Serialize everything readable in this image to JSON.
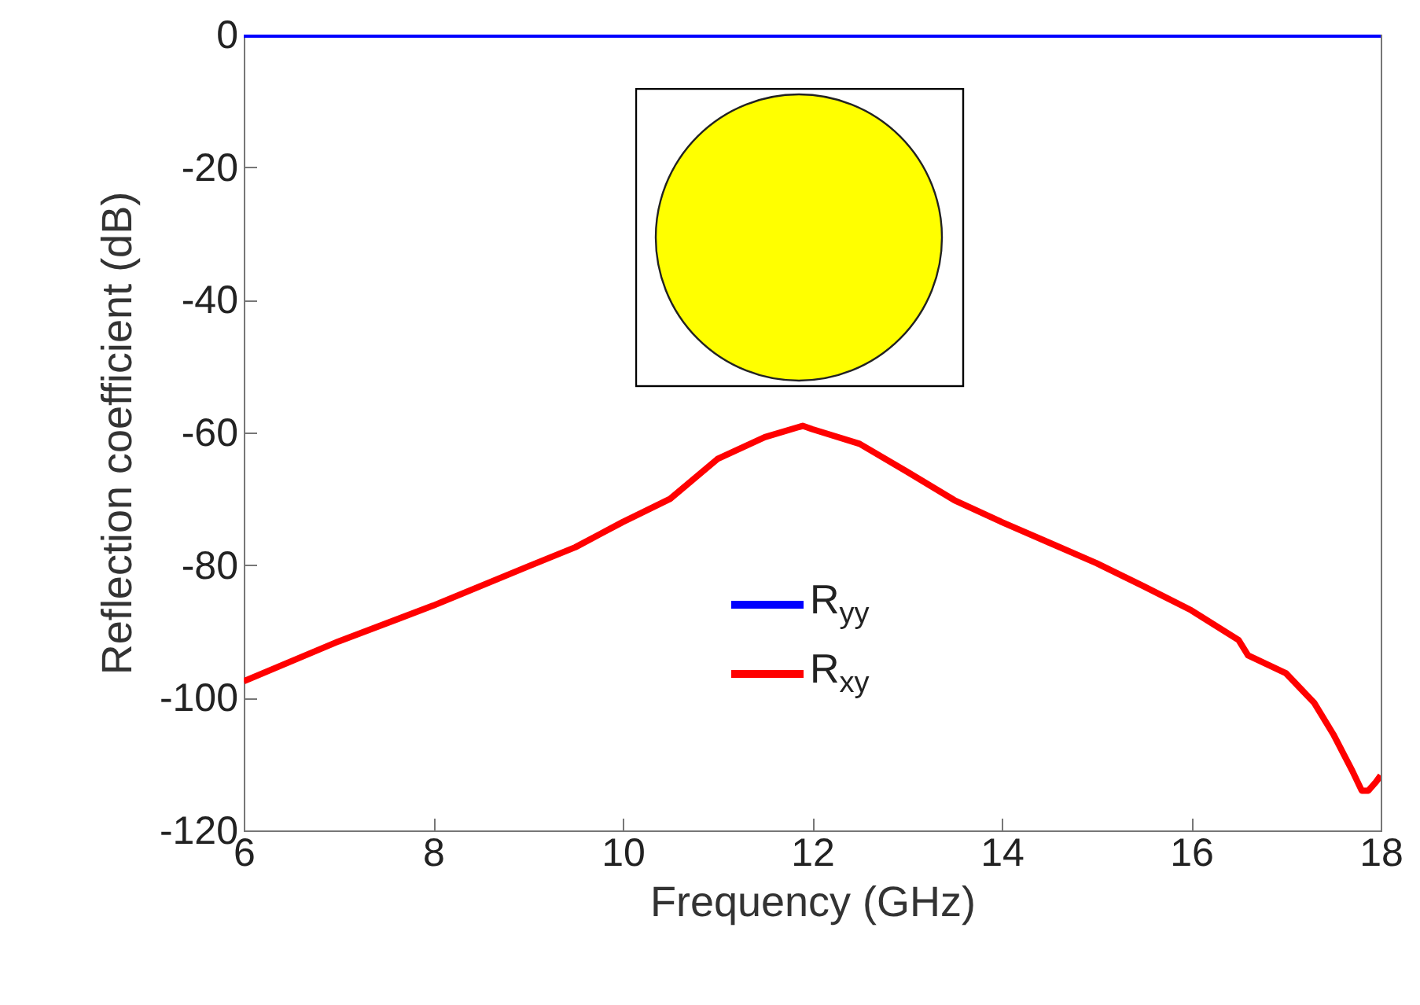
{
  "chart_data": {
    "type": "line",
    "xlabel": "Frequency (GHz)",
    "ylabel": "Reflection coefficient (dB)",
    "xlim": [
      6,
      18
    ],
    "xticks": [
      6,
      8,
      10,
      12,
      14,
      16,
      18
    ],
    "ylim": [
      -120,
      0
    ],
    "yticks": [
      -120,
      -100,
      -80,
      -60,
      -40,
      -20,
      0
    ],
    "grid": false,
    "legend": "bottom",
    "marker": "none",
    "line_style": "solid",
    "series": [
      {
        "name": "R$_{yy}$",
        "color": "#0000ff",
        "x": [
          6,
          18
        ],
        "values": [
          0,
          0
        ]
      },
      {
        "name": "R$_{xy}$",
        "color": "#ff0000",
        "x": [
          6,
          7,
          8,
          9,
          9.5,
          10,
          10.5,
          11,
          11.5,
          11.9,
          12,
          12.5,
          13,
          13.5,
          14,
          14.5,
          15,
          15.5,
          16,
          16.5,
          16.6,
          17,
          17.3,
          17.5,
          17.7,
          17.8,
          17.87,
          17.95,
          18
        ],
        "values": [
          -97.5,
          -91.5,
          -86.1,
          -80.2,
          -77.3,
          -73.5,
          -70.0,
          -64,
          -60.7,
          -59,
          -59.5,
          -61.7,
          -65.9,
          -70.2,
          -73.5,
          -76.6,
          -79.7,
          -83.2,
          -86.8,
          -91.3,
          -93.6,
          -96.3,
          -100.8,
          -105.5,
          -111,
          -114,
          -114,
          -112.7,
          -111.7
        ]
      }
    ]
  }
}
